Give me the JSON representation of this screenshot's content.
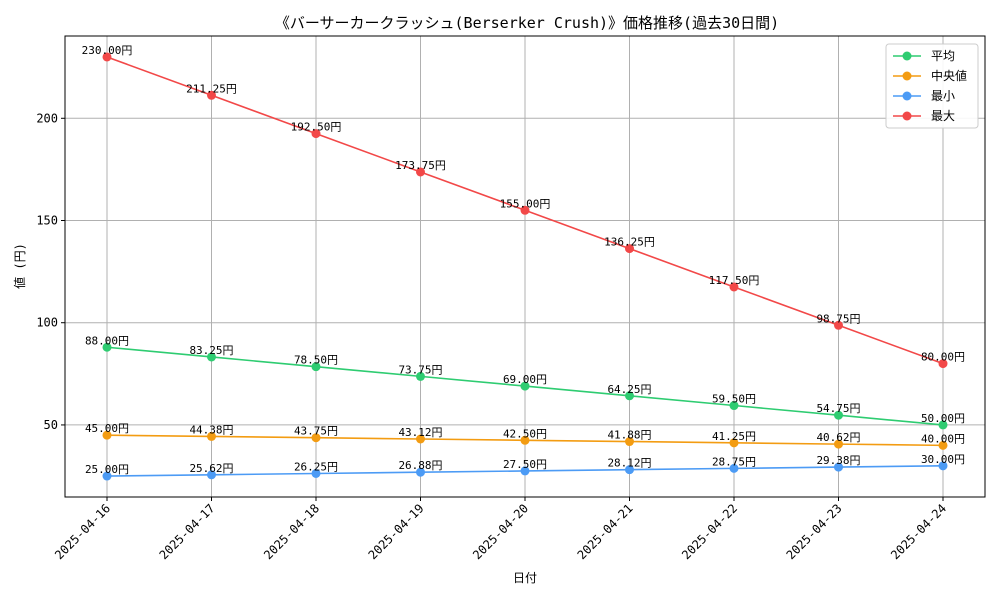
{
  "chart_data": {
    "type": "line",
    "title": "《バーサーカークラッシュ(Berserker Crush)》価格推移(過去30日間)",
    "xlabel": "日付",
    "ylabel": "値 (円)",
    "categories": [
      "2025-04-16",
      "2025-04-17",
      "2025-04-18",
      "2025-04-19",
      "2025-04-20",
      "2025-04-21",
      "2025-04-22",
      "2025-04-23",
      "2025-04-24"
    ],
    "ylim": [
      14.75,
      240.25
    ],
    "yticks": [
      50,
      100,
      150,
      200
    ],
    "grid": true,
    "legend_position": "top-right",
    "label_suffix": "円",
    "series": [
      {
        "name": "平均",
        "color": "#2ecc71",
        "values": [
          88.0,
          83.25,
          78.5,
          73.75,
          69.0,
          64.25,
          59.5,
          54.75,
          50.0
        ],
        "labels": [
          "88.00円",
          "83.25円",
          "78.50円",
          "73.75円",
          "69.00円",
          "64.25円",
          "59.50円",
          "54.75円",
          "50.00円"
        ]
      },
      {
        "name": "中央値",
        "color": "#f39c12",
        "values": [
          45.0,
          44.38,
          43.75,
          43.12,
          42.5,
          41.88,
          41.25,
          40.62,
          40.0
        ],
        "labels": [
          "45.00円",
          "44.38円",
          "43.75円",
          "43.12円",
          "42.50円",
          "41.88円",
          "41.25円",
          "40.62円",
          "40.00円"
        ]
      },
      {
        "name": "最小",
        "color": "#4c9bf5",
        "values": [
          25.0,
          25.62,
          26.25,
          26.88,
          27.5,
          28.12,
          28.75,
          29.38,
          30.0
        ],
        "labels": [
          "25.00円",
          "25.62円",
          "26.25円",
          "26.88円",
          "27.50円",
          "28.12円",
          "28.75円",
          "29.38円",
          "30.00円"
        ]
      },
      {
        "name": "最大",
        "color": "#f24848",
        "values": [
          230.0,
          211.25,
          192.5,
          173.75,
          155.0,
          136.25,
          117.5,
          98.75,
          80.0
        ],
        "labels": [
          "230.00円",
          "211.25円",
          "192.50円",
          "173.75円",
          "155.00円",
          "136.25円",
          "117.50円",
          "98.75円",
          "80.00円"
        ]
      }
    ]
  }
}
